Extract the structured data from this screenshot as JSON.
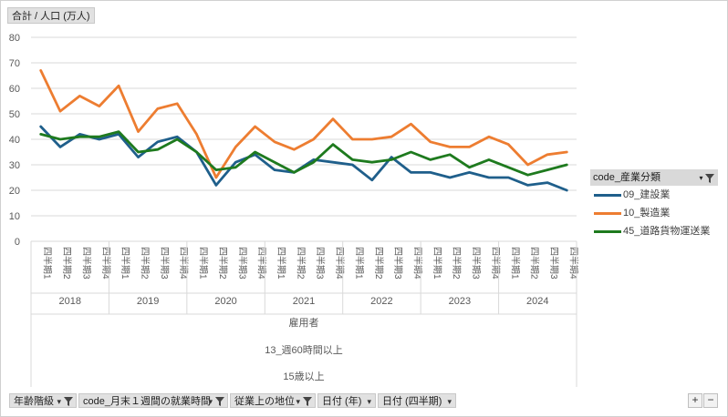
{
  "value_button": "合計 / 人口 (万人)",
  "filter_buttons": [
    {
      "label": "年齢階級"
    },
    {
      "label": "code_月末１週間の就業時間"
    },
    {
      "label": "従業上の地位"
    },
    {
      "label": "日付 (年)"
    },
    {
      "label": "日付 (四半期)"
    }
  ],
  "legend": {
    "title": "code_産業分類",
    "items": [
      {
        "label": "09_建設業",
        "color": "#1f5f8b"
      },
      {
        "label": "10_製造業",
        "color": "#ed7d31"
      },
      {
        "label": "45_道路貨物運送業",
        "color": "#1e7a1e"
      }
    ]
  },
  "row_labels": [
    "雇用者",
    "13_週60時間以上",
    "15歳以上"
  ],
  "controls": {
    "plus": "+",
    "minus": "−"
  },
  "chart_data": {
    "type": "line",
    "ylim": [
      0,
      80
    ],
    "yticks": [
      0,
      10,
      20,
      30,
      40,
      50,
      60,
      70,
      80
    ],
    "grid": true,
    "legend_position": "right",
    "quarter_labels": [
      "四半期1",
      "四半期2",
      "四半期3",
      "四半期4"
    ],
    "years": [
      "2018",
      "2019",
      "2020",
      "2021",
      "2022",
      "2023",
      "2024"
    ],
    "series": [
      {
        "name": "09_建設業",
        "color": "#1f5f8b",
        "values": [
          45,
          37,
          42,
          40,
          42,
          33,
          39,
          41,
          35,
          22,
          31,
          34,
          28,
          27,
          32,
          31,
          30,
          24,
          33,
          27,
          27,
          25,
          27,
          25,
          25,
          22,
          23,
          20
        ]
      },
      {
        "name": "10_製造業",
        "color": "#ed7d31",
        "values": [
          67,
          51,
          57,
          53,
          61,
          43,
          52,
          54,
          42,
          25,
          37,
          45,
          39,
          36,
          40,
          48,
          40,
          40,
          41,
          46,
          39,
          37,
          37,
          41,
          38,
          30,
          34,
          35
        ]
      },
      {
        "name": "45_道路貨物運送業",
        "color": "#1e7a1e",
        "values": [
          42,
          40,
          41,
          41,
          43,
          35,
          36,
          40,
          35,
          28,
          29,
          35,
          31,
          27,
          31,
          38,
          32,
          31,
          32,
          35,
          32,
          34,
          29,
          32,
          29,
          26,
          28,
          30
        ]
      }
    ]
  }
}
